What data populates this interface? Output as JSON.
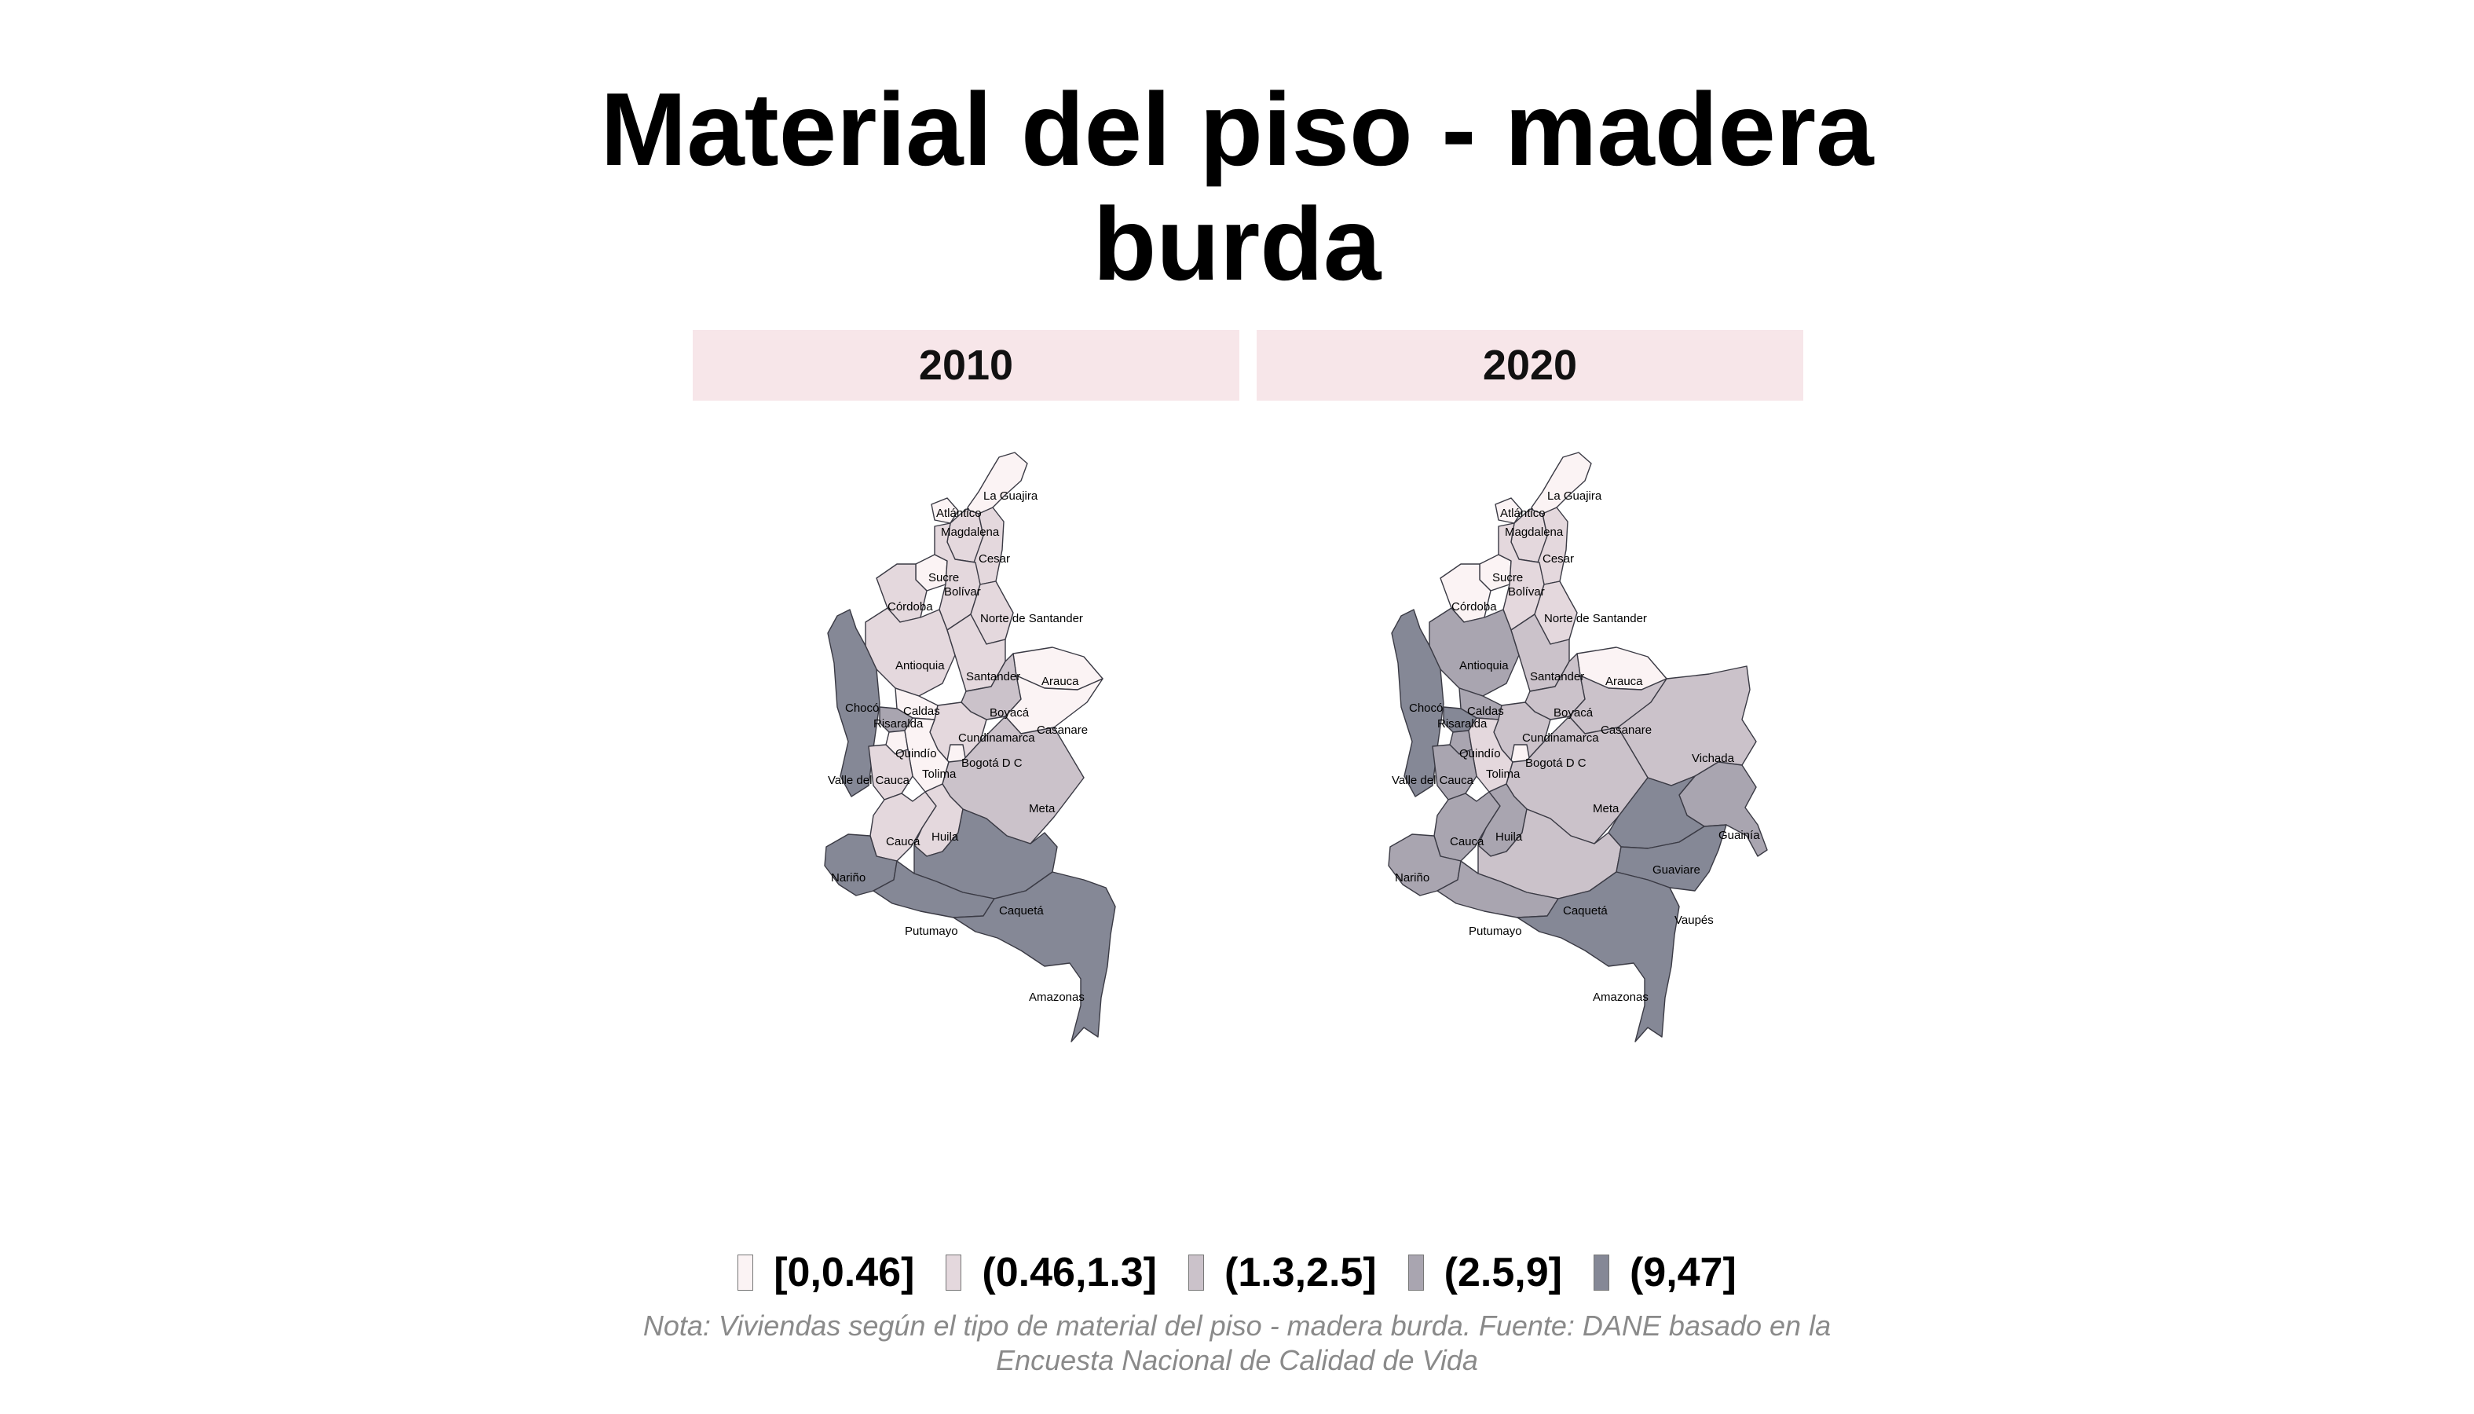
{
  "title": {
    "line1": "Material del piso - madera",
    "line2": "burda"
  },
  "panels": [
    {
      "year": "2010"
    },
    {
      "year": "2020"
    }
  ],
  "legend": [
    {
      "label": "[0,0.46]",
      "color": "#fbf3f4"
    },
    {
      "label": "(0.46,1.3]",
      "color": "#e4d8dd"
    },
    {
      "label": "(1.3,2.5]",
      "color": "#cbc2ca"
    },
    {
      "label": "(2.5,9]",
      "color": "#a9a5b0"
    },
    {
      "label": "(9,47]",
      "color": "#858896"
    }
  ],
  "note": {
    "line1": "Nota: Viviendas según el tipo de material del piso - madera burda. Fuente: DANE basado en la",
    "line2": "Encuesta Nacional de Calidad de Vida"
  },
  "departments": {
    "La Guajira": {
      "2010": 1,
      "2020": 1
    },
    "Atlántico": {
      "2010": 1,
      "2020": 1
    },
    "Magdalena": {
      "2010": 2,
      "2020": 2
    },
    "Cesar": {
      "2010": 2,
      "2020": 2
    },
    "Sucre": {
      "2010": 1,
      "2020": 1
    },
    "Bolívar": {
      "2010": 2,
      "2020": 2
    },
    "Córdoba": {
      "2010": 2,
      "2020": 1
    },
    "Norte de Santander": {
      "2010": 2,
      "2020": 2
    },
    "Antioquia": {
      "2010": 2,
      "2020": 4
    },
    "Santander": {
      "2010": 2,
      "2020": 3
    },
    "Arauca": {
      "2010": 1,
      "2020": 1
    },
    "Chocó": {
      "2010": 5,
      "2020": 5
    },
    "Boyacá": {
      "2010": 3,
      "2020": 3
    },
    "Casanare": {
      "2010": 1,
      "2020": 3
    },
    "Vichada": {
      "2010": null,
      "2020": 3
    },
    "Caldas": {
      "2010": 1,
      "2020": 4
    },
    "Risaralda": {
      "2010": 4,
      "2020": 5
    },
    "Cundinamarca": {
      "2010": 2,
      "2020": 3
    },
    "Quindío": {
      "2010": 1,
      "2020": 4
    },
    "Bogotá D C": {
      "2010": 1,
      "2020": 1
    },
    "Tolima": {
      "2010": 1,
      "2020": 2
    },
    "Valle del Cauca": {
      "2010": 2,
      "2020": 4
    },
    "Meta": {
      "2010": 3,
      "2020": 3
    },
    "Guainía": {
      "2010": null,
      "2020": 4
    },
    "Guaviare": {
      "2010": null,
      "2020": 5
    },
    "Cauca": {
      "2010": 2,
      "2020": 4
    },
    "Huila": {
      "2010": 2,
      "2020": 4
    },
    "Nariño": {
      "2010": 5,
      "2020": 4
    },
    "Caquetá": {
      "2010": 5,
      "2020": 3
    },
    "Vaupés": {
      "2010": null,
      "2020": 5
    },
    "Putumayo": {
      "2010": 5,
      "2020": 4
    },
    "Amazonas": {
      "2010": 5,
      "2020": 5
    }
  }
}
